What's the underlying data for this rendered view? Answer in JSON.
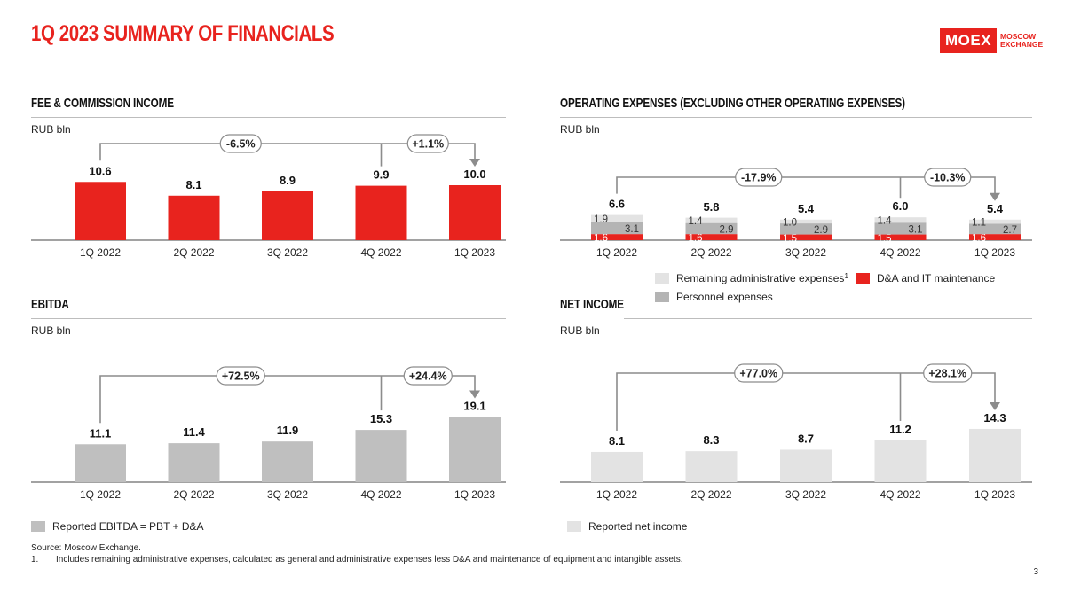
{
  "page": {
    "title": "1Q 2023 SUMMARY OF FINANCIALS",
    "logo_main": "MOEX",
    "logo_line1": "MOSCOW",
    "logo_line2": "EXCHANGE",
    "source": "Source: Moscow Exchange.",
    "footnote_num": "1.",
    "footnote": "Includes remaining administrative expenses, calculated as general and administrative expenses less D&A and maintenance of equipment and intangible assets.",
    "page_number": "3"
  },
  "colors": {
    "red": "#e8231e",
    "grey_dark": "#bfbfbf",
    "grey_light": "#e3e3e3",
    "grey_mid": "#b4b4b4"
  },
  "panels": {
    "fee": {
      "title": "FEE & COMMISSION INCOME",
      "unit": "RUB bln"
    },
    "opex": {
      "title": "OPERATING EXPENSES (EXCLUDING OTHER OPERATING EXPENSES)",
      "unit": "RUB bln",
      "legend": {
        "remaining": "Remaining administrative expenses",
        "remaining_sup": "1",
        "da": "D&A and IT maintenance",
        "personnel": "Personnel expenses"
      }
    },
    "ebitda": {
      "title": "EBITDA",
      "unit": "RUB bln",
      "legend": "Reported EBITDA = PBT + D&A"
    },
    "net": {
      "title": "NET INCOME",
      "unit": "RUB bln",
      "legend": "Reported net income"
    }
  },
  "chart_data": [
    {
      "id": "fee",
      "type": "bar",
      "categories": [
        "1Q 2022",
        "2Q 2022",
        "3Q 2022",
        "4Q 2022",
        "1Q 2023"
      ],
      "values": [
        10.6,
        8.1,
        8.9,
        9.9,
        10.0
      ],
      "value_labels": [
        "10.6",
        "8.1",
        "8.9",
        "9.9",
        "10.0"
      ],
      "color": "#e8231e",
      "annotations": [
        {
          "from": "1Q 2022",
          "to": "1Q 2023",
          "label": "-6.5%"
        },
        {
          "from": "4Q 2022",
          "to": "1Q 2023",
          "label": "+1.1%"
        }
      ]
    },
    {
      "id": "opex",
      "type": "bar",
      "stacked": true,
      "categories": [
        "1Q 2022",
        "2Q 2022",
        "3Q 2022",
        "4Q 2022",
        "1Q 2023"
      ],
      "totals": [
        6.6,
        5.8,
        5.4,
        6.0,
        5.4
      ],
      "total_labels": [
        "6.6",
        "5.8",
        "5.4",
        "6.0",
        "5.4"
      ],
      "series": [
        {
          "name": "D&A and IT maintenance",
          "values": [
            1.6,
            1.6,
            1.5,
            1.5,
            1.6
          ],
          "labels": [
            "1.6",
            "1.6",
            "1.5",
            "1.5",
            "1.6"
          ],
          "color": "#e8231e"
        },
        {
          "name": "Personnel expenses",
          "values": [
            3.1,
            2.9,
            2.9,
            3.1,
            2.7
          ],
          "labels": [
            "3.1",
            "2.9",
            "2.9",
            "3.1",
            "2.7"
          ],
          "color": "#b4b4b4"
        },
        {
          "name": "Remaining administrative expenses",
          "values": [
            1.9,
            1.4,
            1.0,
            1.4,
            1.1
          ],
          "labels": [
            "1.9",
            "1.4",
            "1.0",
            "1.4",
            "1.1"
          ],
          "color": "#e3e3e3"
        }
      ],
      "annotations": [
        {
          "from": "1Q 2022",
          "to": "1Q 2023",
          "label": "-17.9%"
        },
        {
          "from": "4Q 2022",
          "to": "1Q 2023",
          "label": "-10.3%"
        }
      ]
    },
    {
      "id": "ebitda",
      "type": "bar",
      "categories": [
        "1Q 2022",
        "2Q 2022",
        "3Q 2022",
        "4Q 2022",
        "1Q 2023"
      ],
      "values": [
        11.1,
        11.4,
        11.9,
        15.3,
        19.1
      ],
      "value_labels": [
        "11.1",
        "11.4",
        "11.9",
        "15.3",
        "19.1"
      ],
      "color": "#bfbfbf",
      "annotations": [
        {
          "from": "1Q 2022",
          "to": "1Q 2023",
          "label": "+72.5%"
        },
        {
          "from": "4Q 2022",
          "to": "1Q 2023",
          "label": "+24.4%"
        }
      ]
    },
    {
      "id": "net",
      "type": "bar",
      "categories": [
        "1Q 2022",
        "2Q 2022",
        "3Q 2022",
        "4Q 2022",
        "1Q 2023"
      ],
      "values": [
        8.1,
        8.3,
        8.7,
        11.2,
        14.3
      ],
      "value_labels": [
        "8.1",
        "8.3",
        "8.7",
        "11.2",
        "14.3"
      ],
      "color": "#e3e3e3",
      "annotations": [
        {
          "from": "1Q 2022",
          "to": "1Q 2023",
          "label": "+77.0%"
        },
        {
          "from": "4Q 2022",
          "to": "1Q 2023",
          "label": "+28.1%"
        }
      ]
    }
  ]
}
